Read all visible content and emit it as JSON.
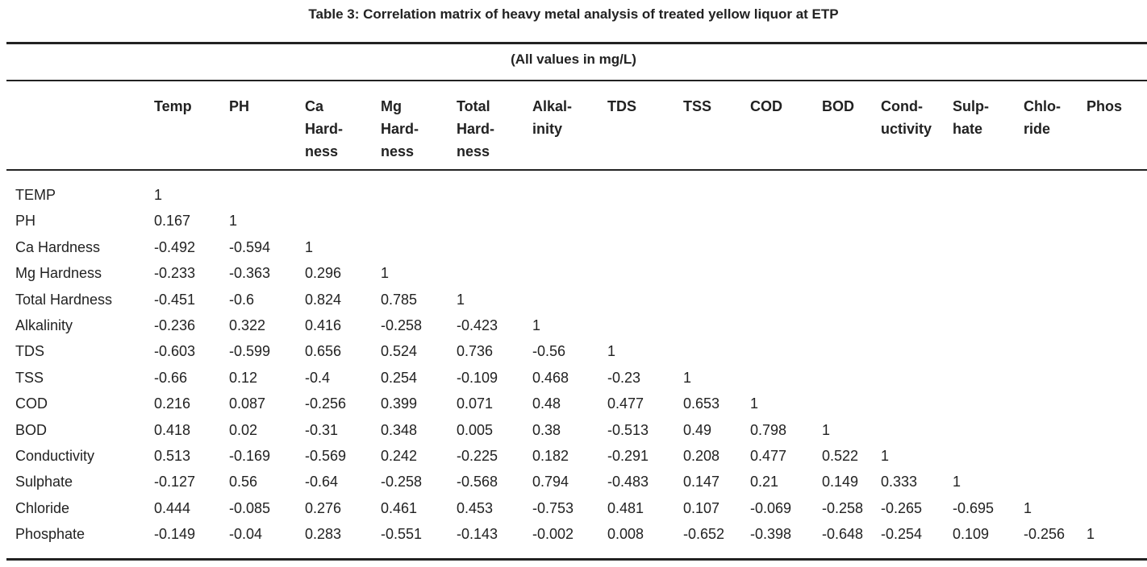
{
  "title": "Table 3: Correlation matrix of heavy metal analysis of treated yellow liquor at ETP",
  "units": "(All values in mg/L)",
  "columns": [
    "Temp",
    "PH",
    "Ca\nHard-\nness",
    "Mg\nHard-\nness",
    "Total\nHard-\nness",
    "Alkal-\ninity",
    "TDS",
    "TSS",
    "COD",
    "BOD",
    "Cond-\nuctivity",
    "Sulp-\nhate",
    "Chlo-\nride",
    "Phos"
  ],
  "rows": [
    {
      "label": "TEMP",
      "values": [
        "1"
      ]
    },
    {
      "label": "PH",
      "values": [
        "0.167",
        "1"
      ]
    },
    {
      "label": "Ca Hardness",
      "values": [
        "-0.492",
        "-0.594",
        "1"
      ]
    },
    {
      "label": "Mg Hardness",
      "values": [
        "-0.233",
        "-0.363",
        "0.296",
        "1"
      ]
    },
    {
      "label": "Total Hardness",
      "values": [
        "-0.451",
        "-0.6",
        "0.824",
        "0.785",
        "1"
      ]
    },
    {
      "label": "Alkalinity",
      "values": [
        "-0.236",
        "0.322",
        "0.416",
        "-0.258",
        "-0.423",
        "1"
      ]
    },
    {
      "label": "TDS",
      "values": [
        "-0.603",
        "-0.599",
        "0.656",
        "0.524",
        "0.736",
        "-0.56",
        "1"
      ]
    },
    {
      "label": "TSS",
      "values": [
        "-0.66",
        "0.12",
        "-0.4",
        "0.254",
        "-0.109",
        "0.468",
        "-0.23",
        "1"
      ]
    },
    {
      "label": "COD",
      "values": [
        "0.216",
        "0.087",
        "-0.256",
        "0.399",
        "0.071",
        "0.48",
        "0.477",
        "0.653",
        "1"
      ]
    },
    {
      "label": "BOD",
      "values": [
        "0.418",
        "0.02",
        "-0.31",
        "0.348",
        "0.005",
        "0.38",
        "-0.513",
        "0.49",
        "0.798",
        "1"
      ]
    },
    {
      "label": "Conductivity",
      "values": [
        "0.513",
        "-0.169",
        "-0.569",
        "0.242",
        "-0.225",
        "0.182",
        "-0.291",
        "0.208",
        "0.477",
        "0.522",
        "1"
      ]
    },
    {
      "label": "Sulphate",
      "values": [
        "-0.127",
        "0.56",
        "-0.64",
        "-0.258",
        "-0.568",
        "0.794",
        "-0.483",
        "0.147",
        "0.21",
        "0.149",
        "0.333",
        "1"
      ]
    },
    {
      "label": "Chloride",
      "values": [
        "0.444",
        "-0.085",
        "0.276",
        "0.461",
        "0.453",
        "-0.753",
        "0.481",
        "0.107",
        "-0.069",
        "-0.258",
        "-0.265",
        "-0.695",
        "1"
      ]
    },
    {
      "label": "Phosphate",
      "values": [
        "-0.149",
        "-0.04",
        "0.283",
        "-0.551",
        "-0.143",
        "-0.002",
        "0.008",
        "-0.652",
        "-0.398",
        "-0.648",
        "-0.254",
        "0.109",
        "-0.256",
        "1"
      ]
    }
  ]
}
